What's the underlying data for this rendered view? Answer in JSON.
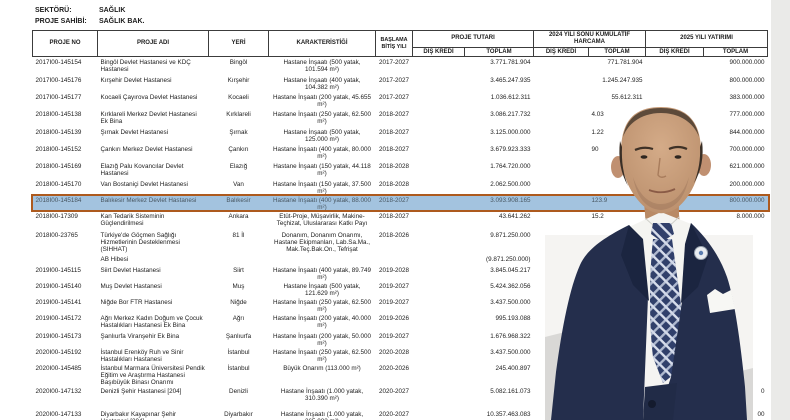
{
  "meta": {
    "sector_label": "SEKTÖRÜ:",
    "sector_value": "SAĞLIK",
    "owner_label": "PROJE SAHİBİ:",
    "owner_value": "SAĞLIK BAK."
  },
  "table": {
    "headers": {
      "proje_no": "PROJE NO",
      "proje_adi": "PROJE ADI",
      "yeri": "YERİ",
      "karakteristigi": "KARAKTERİSTİĞİ",
      "baslama_bitis": "BAŞLAMA BİTİŞ YILI",
      "proje_tutari": "PROJE TUTARI",
      "kumulatif_2024": "2024 YILI SONU KÜMÜLATİF HARCAMA",
      "yatirim_2025": "2025 YILI YATIRIMI",
      "dis_kredi": "DIŞ KREDİ",
      "toplam": "TOPLAM"
    },
    "rows": [
      {
        "no": "2017I00-145154",
        "name": "Bingöl Devlet Hastanesi ve KDÇ Hastanesi",
        "place": "Bingöl",
        "spec": "Hastane İnşaatı (500 yatak, 101.594 m²)",
        "years": "2017-2027",
        "pt_dis": "",
        "pt_top": "3.771.781.904",
        "c24_dis": "",
        "c24_top": "771.781.904",
        "y25_dis": "",
        "y25_top": "900.000.000"
      },
      {
        "no": "2017I00-145176",
        "name": "Kırşehir Devlet Hastanesi",
        "place": "Kırşehir",
        "spec": "Hastane İnşaatı (400 yatak, 104.382 m²)",
        "years": "2017-2027",
        "pt_dis": "",
        "pt_top": "3.465.247.935",
        "c24_dis": "",
        "c24_top": "1.245.247.935",
        "y25_dis": "",
        "y25_top": "800.000.000"
      },
      {
        "no": "2017I00-145177",
        "name": "Kocaeli Çayırova Devlet Hastanesi",
        "place": "Kocaeli",
        "spec": "Hastane İnşaatı (200 yatak, 45.655 m²)",
        "years": "2017-2027",
        "pt_dis": "",
        "pt_top": "1.036.612.311",
        "c24_dis": "",
        "c24_top": "55.612.311",
        "y25_dis": "",
        "y25_top": "383.000.000"
      },
      {
        "no": "2018I00-145138",
        "name": "Kırklareli Merkez Devlet Hastanesi Ek Bina",
        "place": "Kırklareli",
        "spec": "Hastane İnşaatı (250 yatak, 62.500 m²)",
        "years": "2018-2027",
        "pt_dis": "",
        "pt_top": "3.086.217.732",
        "c24_dis": "",
        "c24_top": "4.03",
        "partial24": true,
        "y25_dis": "",
        "y25_top": "777.000.000"
      },
      {
        "no": "2018I00-145139",
        "name": "Şırnak Devlet Hastanesi",
        "place": "Şırnak",
        "spec": "Hastane İnşaatı (500 yatak, 125.000 m²)",
        "years": "2018-2027",
        "pt_dis": "",
        "pt_top": "3.125.000.000",
        "c24_dis": "",
        "c24_top": "1.22",
        "partial24": true,
        "y25_dis": "",
        "y25_top": "844.000.000"
      },
      {
        "no": "2018I00-145152",
        "name": "Çankırı Merkez Devlet Hastanesi",
        "place": "Çankırı",
        "spec": "Hastane İnşaatı (400 yatak, 80.000 m²)",
        "years": "2018-2027",
        "pt_dis": "",
        "pt_top": "3.679.923.333",
        "c24_dis": "",
        "c24_top": "90",
        "partial24": true,
        "y25_dis": "",
        "y25_top": "700.000.000"
      },
      {
        "no": "2018I00-145169",
        "name": "Elazığ Palu Kovancılar Devlet Hastanesi",
        "place": "Elazığ",
        "spec": "Hastane İnşaatı (150 yatak, 44.118 m²)",
        "years": "2018-2028",
        "pt_dis": "",
        "pt_top": "1.764.720.000",
        "c24_dis": "",
        "c24_top": "",
        "y25_dis": "",
        "y25_top": "621.000.000"
      },
      {
        "no": "2018I00-145170",
        "name": "Van Bostaniçi Devlet Hastanesi",
        "place": "Van",
        "spec": "Hastane İnşaatı (150 yatak, 37.500 m²)",
        "years": "2018-2028",
        "pt_dis": "",
        "pt_top": "2.062.500.000",
        "c24_dis": "",
        "c24_top": "",
        "y25_dis": "",
        "y25_top": "200.000.000"
      },
      {
        "no": "2018I00-145184",
        "name": "Balıkesir Merkez Devlet Hastanesi",
        "place": "Balıkesir",
        "spec": "Hastane İnşaatı (400 yatak, 88.000 m²)",
        "years": "2018-2027",
        "pt_dis": "",
        "pt_top": "3.093.908.165",
        "c24_dis": "",
        "c24_top": "123.9",
        "partial24": true,
        "y25_dis": "",
        "y25_top": "800.000.000",
        "highlight": true
      },
      {
        "no": "2018I00-17309",
        "name": "Kan Tedarik Sisteminin Güçlendirilmesi",
        "place": "Ankara",
        "spec": "Etüt-Proje, Müşavirlik, Makine-Teçhizat, Uluslararası Katkı Payı",
        "years": "2018-2027",
        "pt_dis": "",
        "pt_top": "43.641.262",
        "c24_dis": "",
        "c24_top": "15.2",
        "partial24": true,
        "y25_dis": "",
        "y25_top": "8.000.000"
      },
      {
        "no": "2018I00-23765",
        "name": "Türkiye'de Göçmen Sağlığı Hizmetlerinin Desteklenmesi (SIHHAT)",
        "place": "81 İl",
        "spec": "Donanım, Donanım Onarımı, Hastane Ekipmanları, Lab.Sa.Ma., Mak.Teç.Bak.On., Tefrişat",
        "years": "2018-2026",
        "pt_dis": "",
        "pt_top": "9.871.250.000",
        "c24_dis": "",
        "c24_top": "",
        "y25_dis": "",
        "y25_top": ""
      },
      {
        "no": "",
        "name": "AB Hibesi",
        "place": "",
        "spec": "",
        "years": "",
        "pt_dis": "",
        "pt_top": "(9.871.250.000)",
        "c24_dis": "",
        "c24_top": "",
        "y25_dis": "",
        "y25_top": "",
        "sub": true
      },
      {
        "no": "2019I00-145115",
        "name": "Siirt Devlet Hastanesi",
        "place": "Siirt",
        "spec": "Hastane İnşaatı (400 yatak, 89.749 m²)",
        "years": "2019-2028",
        "pt_dis": "",
        "pt_top": "3.845.045.217",
        "c24_dis": "",
        "c24_top": "",
        "y25_dis": "",
        "y25_top": ""
      },
      {
        "no": "2019I00-145140",
        "name": "Muş Devlet Hastanesi",
        "place": "Muş",
        "spec": "Hastane İnşaatı (500 yatak, 121.629 m²)",
        "years": "2019-2027",
        "pt_dis": "",
        "pt_top": "5.424.362.056",
        "c24_dis": "",
        "c24_top": "",
        "y25_dis": "",
        "y25_top": ""
      },
      {
        "no": "2019I00-145141",
        "name": "Niğde Bor FTR Hastanesi",
        "place": "Niğde",
        "spec": "Hastane İnşaatı (250 yatak, 62.500 m²)",
        "years": "2019-2027",
        "pt_dis": "",
        "pt_top": "3.437.500.000",
        "c24_dis": "",
        "c24_top": "",
        "y25_dis": "",
        "y25_top": ""
      },
      {
        "no": "2019I00-145172",
        "name": "Ağrı Merkez Kadın Doğum ve Çocuk Hastalıkları Hastanesi Ek Bina",
        "place": "Ağrı",
        "spec": "Hastane İnşaatı (200 yatak, 40.000 m²)",
        "years": "2019-2026",
        "pt_dis": "",
        "pt_top": "995.193.088",
        "c24_dis": "",
        "c24_top": "",
        "y25_dis": "",
        "y25_top": ""
      },
      {
        "no": "2019I00-145173",
        "name": "Şanlıurfa Viranşehir Ek Bina",
        "place": "Şanlıurfa",
        "spec": "Hastane İnşaatı (200 yatak, 50.000 m²)",
        "years": "2019-2027",
        "pt_dis": "",
        "pt_top": "1.676.968.322",
        "c24_dis": "",
        "c24_top": "",
        "y25_dis": "",
        "y25_top": ""
      },
      {
        "no": "2020I00-145192",
        "name": "İstanbul Erenköy Ruh ve Sinir Hastalıkları Hastanesi",
        "place": "İstanbul",
        "spec": "Hastane İnşaatı (250 yatak, 62.500 m²)",
        "years": "2020-2028",
        "pt_dis": "",
        "pt_top": "3.437.500.000",
        "c24_dis": "",
        "c24_top": "",
        "y25_dis": "",
        "y25_top": ""
      },
      {
        "no": "2020I00-145485",
        "name": "İstanbul Marmara Üniversitesi Pendik Eğitim ve Araştırma Hastanesi Başıbüyük Binası Onarımı",
        "place": "İstanbul",
        "spec": "Büyük Onarım (113.000 m²)",
        "years": "2020-2026",
        "pt_dis": "",
        "pt_top": "245.400.897",
        "c24_dis": "",
        "c24_top": "",
        "y25_dis": "",
        "y25_top": ""
      },
      {
        "no": "2020I00-147132",
        "name": "Denizli Şehir Hastanesi [204]",
        "place": "Denizli",
        "spec": "Hastane İnşaatı (1.000 yatak, 310.390 m²)",
        "years": "2020-2027",
        "pt_dis": "",
        "pt_top": "5.082.161.073",
        "c24_dis": "",
        "c24_top": "",
        "y25_dis": "",
        "y25_top": "0"
      },
      {
        "no": "2020I00-147133",
        "name": "Diyarbakır Kayapınar Şehir Hastanesi [204]",
        "place": "Diyarbakır",
        "spec": "Hastane İnşaatı (1.000 yatak, 265.082 m²)",
        "years": "2020-2027",
        "pt_dis": "",
        "pt_top": "10.357.463.083",
        "c24_dis": "",
        "c24_top": "",
        "y25_dis": "",
        "y25_top": "00"
      }
    ]
  },
  "figure": {
    "alt": "portrait-man-navy-suit"
  },
  "colors": {
    "highlight_fill": "#abc7e1",
    "highlight_border": "#ad5a1e",
    "suit": "#242e4c",
    "skin": "#c9a07f"
  }
}
